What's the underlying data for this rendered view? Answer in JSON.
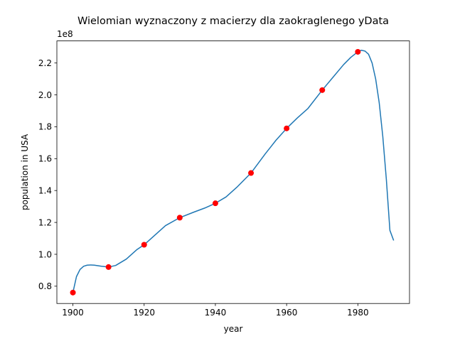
{
  "chart_data": {
    "type": "line",
    "title": "Wielomian wyznaczony z macierzy dla zaokraglenego yData",
    "xlabel": "year",
    "ylabel": "population in USA",
    "y_offset_text": "1e8",
    "xlim": [
      1895.5,
      1994.5
    ],
    "ylim": [
      0.6915,
      2.3385
    ],
    "y_scale_factor": 100000000,
    "grid": false,
    "x_ticks": [
      1900,
      1920,
      1940,
      1960,
      1980
    ],
    "x_tick_labels": [
      "1900",
      "1920",
      "1940",
      "1960",
      "1980"
    ],
    "y_ticks": [
      0.8,
      1.0,
      1.2,
      1.4,
      1.6,
      1.8,
      2.0,
      2.2
    ],
    "y_tick_labels": [
      "0.8",
      "1.0",
      "1.2",
      "1.4",
      "1.6",
      "1.8",
      "2.0",
      "2.2"
    ],
    "series": [
      {
        "kind": "line",
        "color": "#1f77b4",
        "x": [
          1900,
          1901,
          1902,
          1903,
          1904,
          1905,
          1906,
          1908,
          1910,
          1912,
          1915,
          1918,
          1920,
          1923,
          1926,
          1930,
          1934,
          1937,
          1940,
          1943,
          1946,
          1950,
          1954,
          1957,
          1960,
          1963,
          1966,
          1970,
          1973,
          1976,
          1978,
          1980,
          1981,
          1982,
          1983,
          1984,
          1985,
          1986,
          1987,
          1988,
          1989,
          1990
        ],
        "y": [
          0.76,
          0.86,
          0.905,
          0.925,
          0.932,
          0.933,
          0.932,
          0.925,
          0.92,
          0.93,
          0.97,
          1.03,
          1.06,
          1.12,
          1.18,
          1.23,
          1.265,
          1.29,
          1.32,
          1.36,
          1.42,
          1.51,
          1.63,
          1.715,
          1.79,
          1.855,
          1.915,
          2.03,
          2.11,
          2.19,
          2.235,
          2.27,
          2.28,
          2.275,
          2.255,
          2.2,
          2.1,
          1.95,
          1.74,
          1.47,
          1.15,
          1.09
        ]
      },
      {
        "kind": "markers",
        "color": "#ff0000",
        "x": [
          1900,
          1910,
          1920,
          1930,
          1940,
          1950,
          1960,
          1970,
          1980
        ],
        "y": [
          0.76,
          0.92,
          1.06,
          1.23,
          1.32,
          1.51,
          1.79,
          2.03,
          2.27
        ]
      }
    ]
  }
}
